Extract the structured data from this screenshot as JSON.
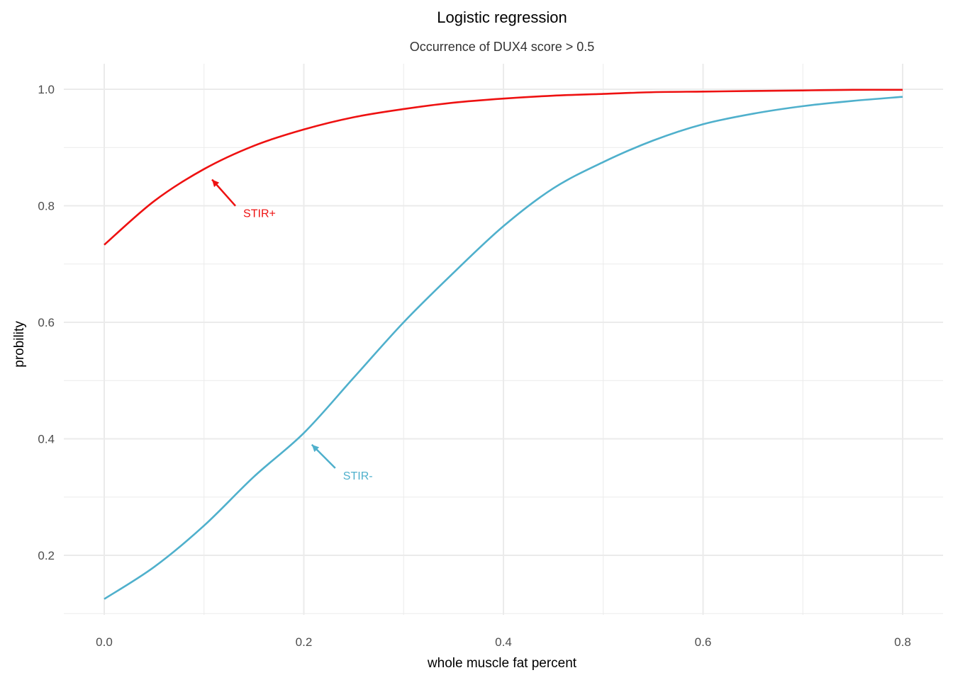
{
  "chart_data": {
    "type": "line",
    "title": "Logistic regression",
    "subtitle": "Occurrence of DUX4 score > 0.5",
    "xlabel": "whole muscle fat percent",
    "ylabel": "probility",
    "xlim": [
      0,
      0.8
    ],
    "ylim": [
      0.1,
      1.0
    ],
    "x_ticks": [
      "0.0",
      "0.2",
      "0.4",
      "0.6",
      "0.8"
    ],
    "y_ticks": [
      "0.2",
      "0.4",
      "0.6",
      "0.8",
      "1.0"
    ],
    "grid": true,
    "series": [
      {
        "name": "STIR+",
        "color": "#ee1111",
        "x": [
          0.0,
          0.05,
          0.1,
          0.15,
          0.2,
          0.25,
          0.3,
          0.35,
          0.4,
          0.45,
          0.5,
          0.55,
          0.6,
          0.65,
          0.7,
          0.75,
          0.8
        ],
        "y": [
          0.733,
          0.808,
          0.863,
          0.903,
          0.931,
          0.952,
          0.966,
          0.977,
          0.984,
          0.989,
          0.992,
          0.995,
          0.996,
          0.997,
          0.998,
          0.999,
          0.999
        ]
      },
      {
        "name": "STIR-",
        "color": "#4fb0cc",
        "x": [
          0.0,
          0.05,
          0.1,
          0.15,
          0.2,
          0.25,
          0.3,
          0.35,
          0.4,
          0.45,
          0.5,
          0.55,
          0.6,
          0.65,
          0.7,
          0.75,
          0.8
        ],
        "y": [
          0.125,
          0.18,
          0.251,
          0.335,
          0.41,
          0.505,
          0.6,
          0.685,
          0.765,
          0.83,
          0.875,
          0.912,
          0.94,
          0.958,
          0.971,
          0.98,
          0.987
        ]
      }
    ],
    "annotations": [
      {
        "text": "STIR+",
        "color": "#ee1111",
        "point_x": 0.108,
        "point_y": 0.845,
        "label_x": 0.14,
        "label_y": 0.79
      },
      {
        "text": "STIR-",
        "color": "#4fb0cc",
        "point_x": 0.208,
        "point_y": 0.39,
        "label_x": 0.24,
        "label_y": 0.34
      }
    ]
  }
}
